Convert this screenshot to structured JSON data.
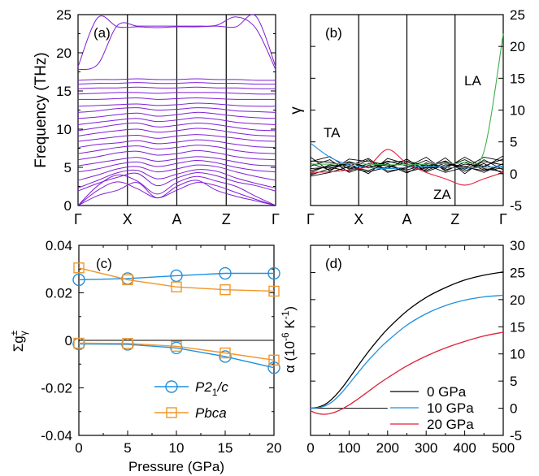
{
  "chart_data": [
    {
      "panel": "(a)",
      "type": "line",
      "ylabel": "Frequency (THz)",
      "ylim": [
        0,
        25
      ],
      "y_ticks": [
        0,
        5,
        10,
        15,
        20,
        25
      ],
      "x_path_labels": [
        "Γ",
        "X",
        "A",
        "Z",
        "Γ"
      ],
      "line_color": "#7f1fd6",
      "series_top": [
        {
          "y": [
            17.8,
            18.5,
            23.6,
            23.5,
            23.5,
            23.5,
            23.5,
            23.6,
            24.7,
            23.2,
            17.8
          ]
        },
        {
          "y": [
            18.2,
            24.6,
            23.4,
            23.4,
            23.3,
            23.4,
            23.4,
            23.5,
            23.4,
            24.8,
            18.2
          ]
        }
      ],
      "series": [
        {
          "y": [
            0,
            2.0,
            3.1,
            2.2,
            1.0,
            2.0,
            3.0,
            2.6,
            1.7,
            0.8,
            0
          ]
        },
        {
          "y": [
            0,
            1.3,
            2.0,
            3.0,
            1.0,
            2.5,
            3.3,
            2.0,
            1.2,
            0.6,
            0
          ]
        },
        {
          "y": [
            0,
            2.6,
            4.0,
            3.2,
            1.5,
            3.0,
            3.8,
            3.2,
            2.5,
            1.2,
            0
          ]
        },
        {
          "y": [
            1.9,
            2.9,
            3.7,
            4.2,
            2.6,
            3.6,
            4.3,
            3.9,
            3.1,
            2.6,
            1.9
          ]
        },
        {
          "y": [
            2.3,
            3.3,
            4.3,
            4.6,
            3.5,
            4.1,
            4.7,
            4.5,
            3.6,
            2.9,
            2.3
          ]
        },
        {
          "y": [
            3.3,
            4.0,
            4.8,
            5.1,
            4.4,
            4.8,
            5.3,
            5.1,
            4.4,
            3.8,
            3.3
          ]
        },
        {
          "y": [
            4.4,
            4.8,
            5.4,
            5.7,
            5.1,
            5.5,
            5.9,
            5.6,
            5.0,
            4.6,
            4.4
          ]
        },
        {
          "y": [
            5.2,
            5.6,
            6.0,
            6.3,
            5.8,
            6.1,
            6.4,
            6.2,
            5.7,
            5.3,
            5.2
          ]
        },
        {
          "y": [
            6.0,
            6.4,
            6.9,
            7.1,
            6.6,
            6.8,
            7.2,
            6.9,
            6.4,
            6.1,
            6.0
          ]
        },
        {
          "y": [
            6.8,
            7.2,
            7.6,
            7.8,
            7.4,
            7.6,
            7.9,
            7.7,
            7.2,
            6.9,
            6.8
          ]
        },
        {
          "y": [
            7.6,
            8.0,
            8.2,
            8.5,
            8.1,
            8.3,
            8.6,
            8.4,
            8.0,
            7.7,
            7.6
          ]
        },
        {
          "y": [
            8.4,
            8.7,
            9.0,
            9.2,
            8.8,
            9.1,
            9.3,
            9.1,
            8.8,
            8.5,
            8.4
          ]
        },
        {
          "y": [
            9.1,
            9.5,
            9.8,
            10.0,
            9.6,
            9.8,
            10.1,
            9.9,
            9.5,
            9.2,
            9.1
          ]
        },
        {
          "y": [
            9.8,
            10.2,
            10.6,
            10.8,
            10.3,
            10.5,
            10.8,
            10.6,
            10.2,
            9.9,
            9.8
          ]
        },
        {
          "y": [
            10.6,
            10.9,
            11.2,
            11.4,
            11.0,
            11.2,
            11.5,
            11.3,
            10.9,
            10.7,
            10.6
          ]
        },
        {
          "y": [
            11.4,
            11.6,
            11.9,
            12.1,
            11.7,
            11.9,
            12.2,
            12.0,
            11.7,
            11.5,
            11.4
          ]
        },
        {
          "y": [
            12.2,
            12.4,
            12.7,
            12.8,
            12.5,
            12.6,
            12.8,
            12.7,
            12.4,
            12.3,
            12.2
          ]
        },
        {
          "y": [
            13.0,
            13.1,
            13.2,
            13.3,
            13.1,
            13.2,
            13.4,
            13.3,
            13.1,
            13.0,
            13.0
          ]
        },
        {
          "y": [
            13.9,
            13.9,
            14.0,
            14.1,
            13.9,
            14.0,
            14.1,
            14.0,
            13.9,
            13.9,
            13.9
          ]
        },
        {
          "y": [
            14.6,
            14.7,
            14.8,
            14.8,
            14.7,
            14.8,
            14.8,
            14.8,
            14.7,
            14.6,
            14.6
          ]
        },
        {
          "y": [
            15.3,
            15.4,
            15.4,
            15.5,
            15.4,
            15.4,
            15.5,
            15.4,
            15.4,
            15.3,
            15.3
          ]
        },
        {
          "y": [
            15.9,
            16.0,
            16.0,
            16.1,
            16.0,
            16.0,
            16.1,
            16.0,
            16.0,
            15.9,
            15.9
          ]
        },
        {
          "y": [
            16.4,
            16.5,
            16.5,
            16.6,
            16.5,
            16.5,
            16.6,
            16.5,
            16.5,
            16.4,
            16.4
          ]
        }
      ]
    },
    {
      "panel": "(b)",
      "type": "line",
      "ylabel": "γ",
      "ylim": [
        -5,
        25
      ],
      "y_ticks": [
        -5,
        0,
        5,
        10,
        15,
        20,
        25
      ],
      "x_path_labels": [
        "Γ",
        "X",
        "A",
        "Z",
        "Γ"
      ],
      "annotations": [
        "TA",
        "LA",
        "ZA"
      ],
      "series": [
        {
          "color": "#1e90e0",
          "y": [
            4.8,
            2.6,
            1.4,
            1.0,
            0.8,
            1.0,
            1.2,
            1.0,
            0.9,
            1.0,
            1.1
          ]
        },
        {
          "color": "#e0203a",
          "y": [
            0.2,
            0.3,
            0.6,
            1.2,
            3.8,
            1.6,
            0.2,
            -0.8,
            -1.8,
            -0.8,
            0.2
          ]
        },
        {
          "color": "#3fb04a",
          "y": [
            1.5,
            1.5,
            1.6,
            1.5,
            1.4,
            1.4,
            1.5,
            1.6,
            1.8,
            3.5,
            22.0
          ]
        }
      ],
      "band_color": "#000000",
      "band_series": [
        {
          "y": [
            0.8,
            1.0,
            0.4,
            1.6,
            1.2,
            0.6,
            1.4,
            0.2,
            1.0,
            0.5,
            0.9
          ]
        },
        {
          "y": [
            1.6,
            0.6,
            1.8,
            0.9,
            2.0,
            1.2,
            0.5,
            1.7,
            0.7,
            1.9,
            1.4
          ]
        },
        {
          "y": [
            0.2,
            1.4,
            0.9,
            0.3,
            1.0,
            1.8,
            0.9,
            1.1,
            2.2,
            0.8,
            0.3
          ]
        },
        {
          "y": [
            2.0,
            1.8,
            1.2,
            2.4,
            0.4,
            0.9,
            2.1,
            0.6,
            1.5,
            1.2,
            2.3
          ]
        },
        {
          "y": [
            -0.4,
            0.2,
            1.1,
            0.5,
            1.6,
            0.3,
            1.0,
            2.0,
            0.4,
            1.6,
            0.0
          ]
        },
        {
          "y": [
            1.2,
            2.2,
            0.2,
            1.3,
            0.8,
            2.3,
            0.3,
            1.4,
            1.2,
            0.2,
            1.6
          ]
        },
        {
          "y": [
            2.6,
            0.4,
            2.3,
            1.9,
            1.4,
            0.1,
            1.7,
            0.8,
            2.6,
            1.0,
            2.8
          ]
        },
        {
          "y": [
            0.5,
            1.2,
            1.5,
            0.0,
            2.4,
            1.5,
            0.7,
            2.5,
            0.0,
            2.2,
            0.6
          ]
        },
        {
          "y": [
            1.9,
            2.7,
            0.7,
            2.2,
            0.2,
            1.0,
            2.6,
            0.4,
            1.8,
            0.6,
            1.2
          ]
        },
        {
          "y": [
            -0.2,
            0.8,
            1.9,
            1.0,
            1.8,
            2.0,
            1.2,
            1.9,
            0.9,
            2.6,
            2.0
          ]
        }
      ]
    },
    {
      "panel": "(c)",
      "type": "line",
      "xlabel": "Pressure (GPa)",
      "ylabel": "Σg",
      "ylabel_sub": "γ",
      "ylabel_sup": "±",
      "xlim": [
        0,
        20
      ],
      "ylim": [
        -0.04,
        0.04
      ],
      "x_ticks": [
        0,
        5,
        10,
        15,
        20
      ],
      "y_ticks": [
        -0.04,
        -0.02,
        0,
        0.02,
        0.04
      ],
      "y_tick_labels": [
        "-0.04",
        "-0.02",
        "0",
        "0.02",
        "0.04"
      ],
      "x": [
        0,
        5,
        10,
        15,
        20
      ],
      "series": [
        {
          "name": "P2",
          "name_sub": "1",
          "name_tail": "/c",
          "marker": "circle",
          "color": "#1e90e0",
          "positive": [
            0.0255,
            0.026,
            0.0272,
            0.0282,
            0.0282
          ],
          "negative": [
            -0.0015,
            -0.0017,
            -0.0032,
            -0.0068,
            -0.0115
          ]
        },
        {
          "name": "Pbca",
          "name_sub": "",
          "name_tail": "",
          "marker": "square",
          "color": "#f0962a",
          "positive": [
            0.0305,
            0.0255,
            0.0225,
            0.0213,
            0.0207
          ],
          "negative": [
            -0.0012,
            -0.0013,
            -0.0025,
            -0.0053,
            -0.0083
          ]
        }
      ]
    },
    {
      "panel": "(d)",
      "type": "line",
      "ylabel": "α (10",
      "ylabel_exp": "-6",
      "ylabel_tail": " K",
      "ylabel_exp2": "-1",
      "ylabel_close": ")",
      "xlim": [
        0,
        500
      ],
      "ylim": [
        -5,
        30
      ],
      "x_ticks": [
        0,
        100,
        200,
        300,
        400,
        500
      ],
      "y_ticks": [
        -5,
        0,
        5,
        10,
        15,
        20,
        25,
        30
      ],
      "series": [
        {
          "name": "0 GPa",
          "color": "#000000",
          "x": [
            0,
            20,
            40,
            60,
            80,
            100,
            125,
            150,
            175,
            200,
            250,
            300,
            350,
            400,
            450,
            500
          ],
          "y": [
            0,
            0.2,
            0.8,
            2.0,
            3.6,
            5.5,
            8.0,
            10.4,
            12.6,
            14.6,
            17.9,
            20.4,
            22.2,
            23.6,
            24.5,
            25.1
          ]
        },
        {
          "name": "10 GPa",
          "color": "#1e90e0",
          "x": [
            0,
            20,
            40,
            60,
            80,
            100,
            125,
            150,
            175,
            200,
            250,
            300,
            350,
            400,
            450,
            500
          ],
          "y": [
            0,
            0.1,
            0.5,
            1.4,
            2.8,
            4.5,
            6.7,
            8.8,
            10.7,
            12.4,
            15.3,
            17.4,
            18.9,
            19.9,
            20.5,
            20.8
          ]
        },
        {
          "name": "20 GPa",
          "color": "#e0203a",
          "x": [
            0,
            20,
            40,
            60,
            80,
            100,
            125,
            150,
            175,
            200,
            250,
            300,
            350,
            400,
            450,
            500
          ],
          "y": [
            -0.5,
            -1.0,
            -1.1,
            -0.8,
            -0.2,
            0.6,
            1.8,
            3.1,
            4.4,
            5.6,
            7.8,
            9.6,
            11.1,
            12.3,
            13.3,
            14.0
          ]
        }
      ]
    }
  ]
}
